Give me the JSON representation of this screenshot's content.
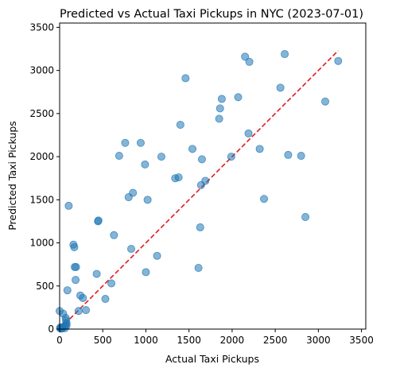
{
  "chart_data": {
    "type": "scatter",
    "title": "Predicted vs Actual Taxi Pickups in NYC (2023-07-01)",
    "xlabel": "Actual Taxi Pickups",
    "ylabel": "Predicted Taxi Pickups",
    "xlim": [
      0,
      3550
    ],
    "ylim": [
      0,
      3550
    ],
    "xticks": [
      0,
      500,
      1000,
      1500,
      2000,
      2500,
      3000,
      3500
    ],
    "yticks": [
      0,
      500,
      1000,
      1500,
      2000,
      2500,
      3000,
      3500
    ],
    "grid": false,
    "marker_color": "#1f77b4",
    "marker_alpha": 0.55,
    "reference_line": {
      "style": "dashed",
      "color": "#e31a1c",
      "from": [
        0,
        0
      ],
      "to": [
        3230,
        3230
      ]
    },
    "points": [
      {
        "x": 5,
        "y": 10
      },
      {
        "x": 10,
        "y": 20
      },
      {
        "x": 18,
        "y": 5
      },
      {
        "x": 22,
        "y": 15
      },
      {
        "x": 30,
        "y": 8
      },
      {
        "x": 50,
        "y": 30
      },
      {
        "x": 60,
        "y": 10
      },
      {
        "x": 70,
        "y": 50
      },
      {
        "x": 75,
        "y": 100
      },
      {
        "x": 80,
        "y": 40
      },
      {
        "x": 80,
        "y": 70
      },
      {
        "x": 0,
        "y": 210
      },
      {
        "x": 40,
        "y": 180
      },
      {
        "x": 70,
        "y": 130
      },
      {
        "x": 90,
        "y": 450
      },
      {
        "x": 105,
        "y": 1430
      },
      {
        "x": 160,
        "y": 980
      },
      {
        "x": 170,
        "y": 950
      },
      {
        "x": 175,
        "y": 720
      },
      {
        "x": 190,
        "y": 720
      },
      {
        "x": 185,
        "y": 570
      },
      {
        "x": 220,
        "y": 210
      },
      {
        "x": 240,
        "y": 390
      },
      {
        "x": 270,
        "y": 360
      },
      {
        "x": 305,
        "y": 220
      },
      {
        "x": 430,
        "y": 640
      },
      {
        "x": 450,
        "y": 1260
      },
      {
        "x": 445,
        "y": 1250
      },
      {
        "x": 530,
        "y": 350
      },
      {
        "x": 600,
        "y": 530
      },
      {
        "x": 630,
        "y": 1090
      },
      {
        "x": 690,
        "y": 2010
      },
      {
        "x": 760,
        "y": 2160
      },
      {
        "x": 800,
        "y": 1530
      },
      {
        "x": 830,
        "y": 930
      },
      {
        "x": 850,
        "y": 1580
      },
      {
        "x": 940,
        "y": 2160
      },
      {
        "x": 990,
        "y": 1910
      },
      {
        "x": 1000,
        "y": 660
      },
      {
        "x": 1020,
        "y": 1500
      },
      {
        "x": 1130,
        "y": 850
      },
      {
        "x": 1180,
        "y": 2000
      },
      {
        "x": 1340,
        "y": 1750
      },
      {
        "x": 1380,
        "y": 1760
      },
      {
        "x": 1400,
        "y": 2370
      },
      {
        "x": 1460,
        "y": 2910
      },
      {
        "x": 1540,
        "y": 2090
      },
      {
        "x": 1610,
        "y": 710
      },
      {
        "x": 1630,
        "y": 1180
      },
      {
        "x": 1640,
        "y": 1670
      },
      {
        "x": 1650,
        "y": 1970
      },
      {
        "x": 1690,
        "y": 1720
      },
      {
        "x": 1850,
        "y": 2440
      },
      {
        "x": 1860,
        "y": 2560
      },
      {
        "x": 1880,
        "y": 2670
      },
      {
        "x": 1990,
        "y": 2000
      },
      {
        "x": 2070,
        "y": 2690
      },
      {
        "x": 2150,
        "y": 3160
      },
      {
        "x": 2190,
        "y": 2270
      },
      {
        "x": 2200,
        "y": 3100
      },
      {
        "x": 2320,
        "y": 2090
      },
      {
        "x": 2370,
        "y": 1510
      },
      {
        "x": 2560,
        "y": 2800
      },
      {
        "x": 2610,
        "y": 3190
      },
      {
        "x": 2650,
        "y": 2020
      },
      {
        "x": 2800,
        "y": 2010
      },
      {
        "x": 2850,
        "y": 1300
      },
      {
        "x": 3080,
        "y": 2640
      },
      {
        "x": 3230,
        "y": 3110
      }
    ]
  }
}
